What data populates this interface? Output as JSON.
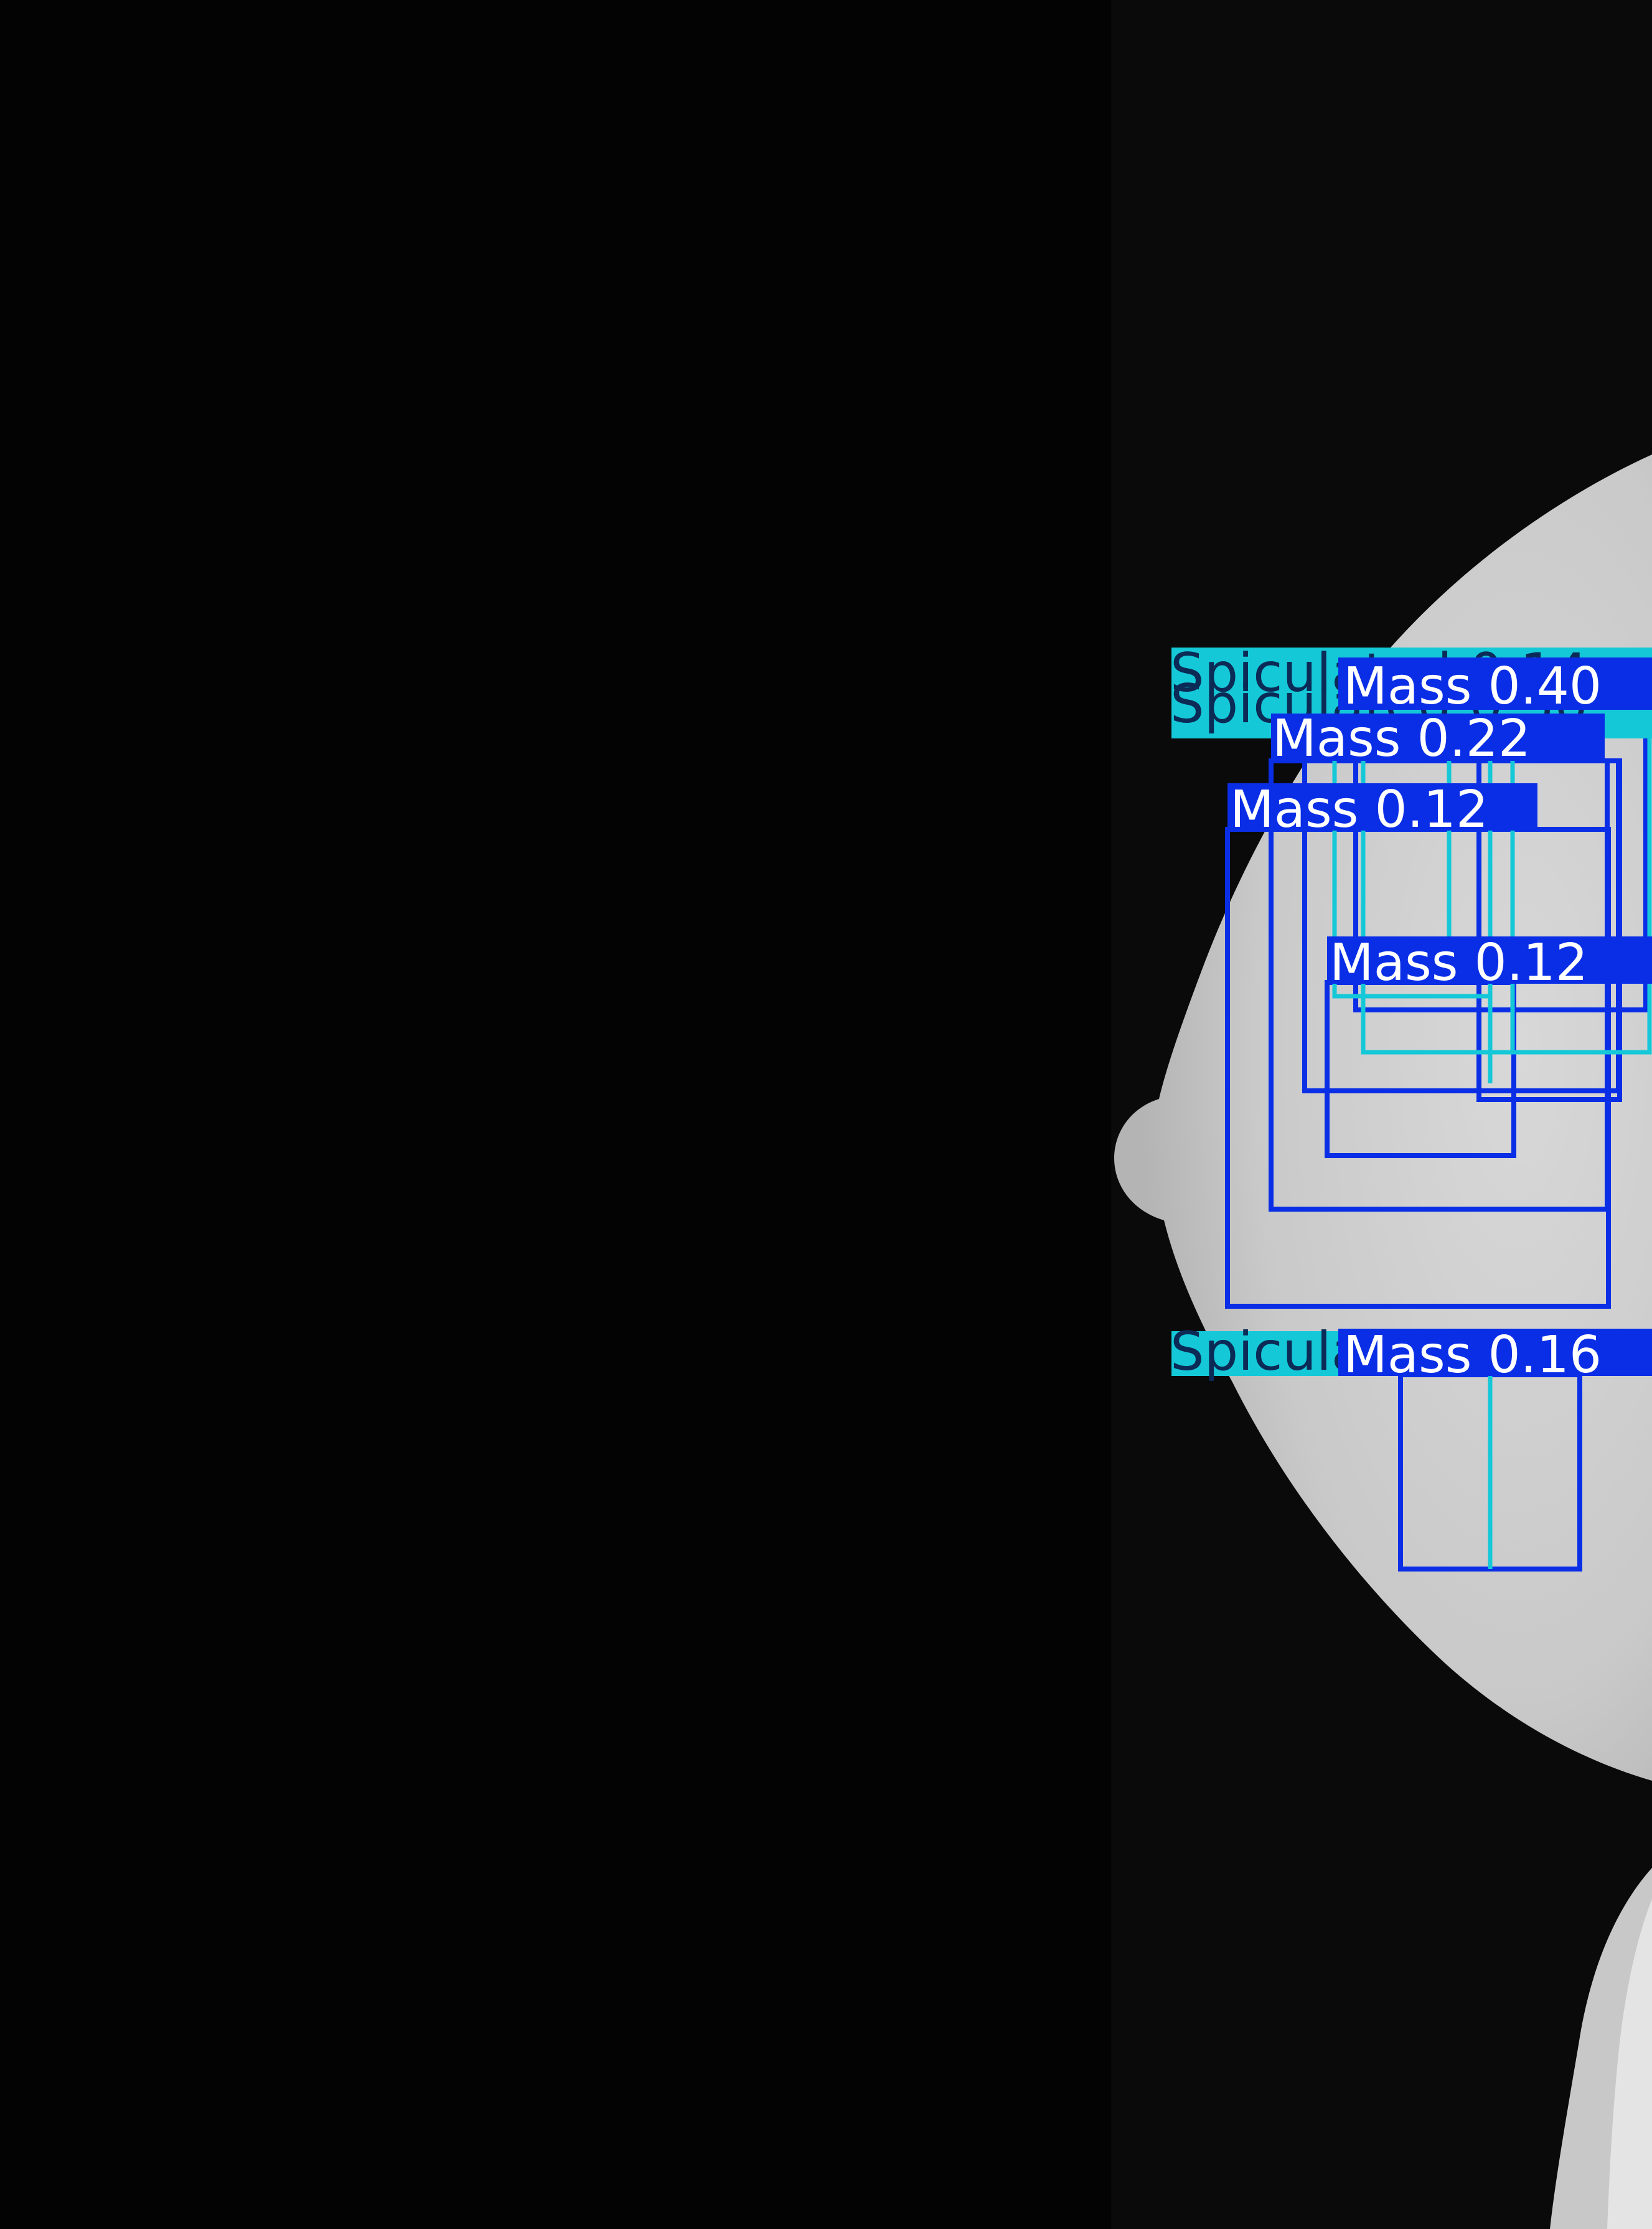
{
  "image": {
    "type": "mammogram-detections",
    "colors": {
      "background": "#030303",
      "tissue_light": "#d4d4d4",
      "tissue_mid": "#bdbdbd",
      "mass": "#0a2ee6",
      "spicule": "#14c8d8",
      "label_text": "#ffffff",
      "spicule_text": "#0b2a55"
    }
  },
  "detections": [
    {
      "name": "mass-040",
      "class": "mass",
      "label": "Mass 0.40"
    },
    {
      "name": "mass-022",
      "class": "mass",
      "label": "Mass 0.22"
    },
    {
      "name": "mass-012-a",
      "class": "mass",
      "label": "Mass 0.12"
    },
    {
      "name": "mass-012-b",
      "class": "mass",
      "label": "Mass 0.12"
    },
    {
      "name": "mass-016",
      "class": "mass",
      "label": "Mass 0.16"
    },
    {
      "name": "spicule-top-a",
      "class": "spicule",
      "label": "Spiculated 0.14"
    },
    {
      "name": "spicule-top-b",
      "class": "spicule",
      "label": "Spiculated 0.30"
    },
    {
      "name": "spicule-bottom",
      "class": "spicule",
      "label": "Spiculated 0.16"
    }
  ]
}
